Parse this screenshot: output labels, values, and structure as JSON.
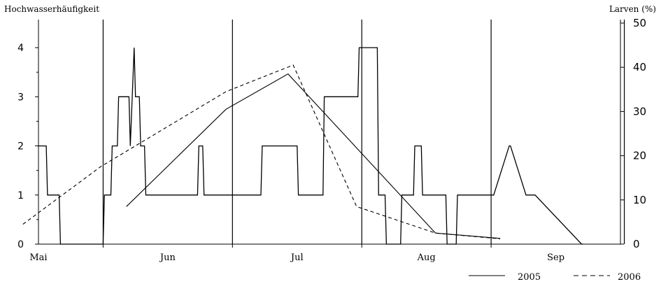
{
  "chart_data": {
    "type": "line",
    "left_axis_label": "Hochwasserhäufigkeit",
    "right_axis_label": "Larven (%)",
    "left_ylim": [
      0,
      4.5
    ],
    "right_ylim": [
      0,
      50
    ],
    "left_ticks": [
      "0",
      "1",
      "2",
      "3",
      "4"
    ],
    "right_ticks": [
      "0",
      "10",
      "20",
      "30",
      "40",
      "50"
    ],
    "months": [
      "Mai",
      "Jun",
      "Jul",
      "Aug",
      "Sep"
    ],
    "xlim": [
      0,
      4.5
    ],
    "month_boundaries": [
      0.5,
      1.5,
      2.5,
      3.5
    ],
    "extra_vertical_line": 4.53,
    "grid": false,
    "flood_frequency": {
      "x": [
        0.0,
        0.06,
        0.07,
        0.16,
        0.17,
        0.21,
        0.22,
        0.5,
        0.51,
        0.56,
        0.57,
        0.61,
        0.62,
        0.7,
        0.71,
        0.74,
        0.75,
        0.78,
        0.79,
        0.82,
        0.83,
        0.94,
        0.95,
        1.01,
        1.03,
        1.23,
        1.24,
        1.27,
        1.28,
        1.72,
        1.73,
        2.0,
        2.01,
        2.2,
        2.21,
        2.47,
        2.48,
        2.62,
        2.63,
        2.68,
        2.69,
        2.8,
        2.81,
        2.9,
        2.91,
        2.96,
        2.97,
        3.15,
        3.16,
        3.23,
        3.24,
        3.36,
        3.4,
        3.52,
        3.64,
        3.65,
        3.77,
        3.78,
        3.83,
        3.84,
        4.2,
        4.21
      ],
      "values": [
        2,
        2,
        1,
        1,
        0,
        0,
        0,
        0,
        1,
        1,
        2,
        2,
        3,
        3,
        2,
        4,
        3,
        3,
        2,
        2,
        1,
        1,
        1,
        1,
        1,
        1,
        2,
        2,
        1,
        1,
        2,
        2,
        1,
        1,
        3,
        3,
        4,
        4,
        1,
        1,
        0,
        0,
        1,
        1,
        2,
        2,
        1,
        1,
        0,
        0,
        1,
        1,
        1,
        1,
        2,
        2,
        1,
        1,
        1,
        1,
        0,
        0
      ]
    },
    "series": [
      {
        "name": "2005",
        "style": "solid",
        "x": [
          0.68,
          1.45,
          1.93,
          3.07,
          3.57
        ],
        "values": [
          8.5,
          30.5,
          38.5,
          2.5,
          1.3
        ]
      },
      {
        "name": "2006",
        "style": "dashed",
        "x": [
          -0.12,
          0.48,
          1.45,
          1.97,
          2.46,
          3.07,
          3.57
        ],
        "values": [
          4.5,
          17.5,
          34.5,
          40.5,
          8.5,
          2.5,
          1.2
        ]
      }
    ],
    "legend_position": "bottom-right"
  },
  "legend": [
    {
      "label": "2005",
      "style": "solid"
    },
    {
      "label": "2006",
      "style": "dashed"
    }
  ]
}
